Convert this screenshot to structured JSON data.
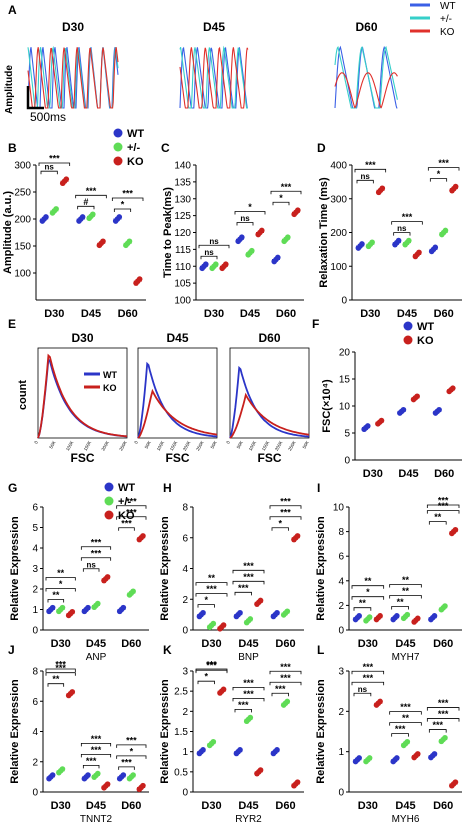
{
  "panel_letters": [
    "A",
    "B",
    "C",
    "D",
    "E",
    "F",
    "G",
    "H",
    "I",
    "J",
    "K",
    "L"
  ],
  "colors": {
    "wt": "#2b35c8",
    "het": "#5fdc56",
    "ko": "#c8201d",
    "trace_wt": "#3a5fe6",
    "trace_het": "#35cfc9",
    "trace_ko": "#e0302b"
  },
  "panel_a": {
    "titles": [
      "D30",
      "D45",
      "D60"
    ],
    "legend": [
      "WT",
      "+/-",
      "KO"
    ],
    "ylabel": "Amplitude",
    "scale_label": "500ms"
  },
  "panel_e": {
    "titles": [
      "D30",
      "D45",
      "D60"
    ],
    "legend": [
      "WT",
      "KO"
    ],
    "ylabel": "count",
    "xlabel": "FSC",
    "xticks_first": [
      "0",
      "50K",
      "100K",
      "150K",
      "200K",
      "250K"
    ],
    "xticks_other": [
      "0",
      "50K",
      "100K",
      "150K",
      "200K",
      "250K",
      "50K"
    ]
  },
  "chart_data": [
    {
      "id": "B",
      "type": "scatter",
      "ylabel": "Amplitude (a.u.)",
      "categories": [
        "D30",
        "D45",
        "D60"
      ],
      "ylim": [
        50,
        300
      ],
      "yticks": [
        100,
        150,
        200,
        250,
        300
      ],
      "legend": [
        "WT",
        "+/-",
        "KO"
      ],
      "series": [
        {
          "name": "WT",
          "values": [
            200,
            200,
            200
          ]
        },
        {
          "name": "+/-",
          "values": [
            215,
            205,
            155
          ]
        },
        {
          "name": "KO",
          "values": [
            270,
            155,
            85
          ]
        }
      ],
      "annotations": [
        [
          "ns",
          "***"
        ],
        [
          "#",
          "***"
        ],
        [
          "*",
          "***"
        ]
      ]
    },
    {
      "id": "C",
      "type": "scatter",
      "ylabel": "Time to Peak(ms)",
      "categories": [
        "D30",
        "D45",
        "D60"
      ],
      "ylim": [
        100,
        140
      ],
      "yticks": [
        100,
        105,
        110,
        115,
        120,
        125,
        130,
        135,
        140
      ],
      "series": [
        {
          "name": "WT",
          "values": [
            110,
            118,
            112
          ]
        },
        {
          "name": "+/-",
          "values": [
            110,
            114,
            118
          ]
        },
        {
          "name": "KO",
          "values": [
            110,
            120,
            126
          ]
        }
      ],
      "annotations": [
        [
          "ns",
          "ns"
        ],
        [
          "ns",
          "*"
        ],
        [
          "*",
          "***"
        ]
      ]
    },
    {
      "id": "D",
      "type": "scatter",
      "ylabel": "Relaxation Time (ms)",
      "categories": [
        "D30",
        "D45",
        "D60"
      ],
      "ylim": [
        0,
        400
      ],
      "yticks": [
        0,
        100,
        200,
        300,
        400
      ],
      "series": [
        {
          "name": "WT",
          "values": [
            160,
            170,
            150
          ]
        },
        {
          "name": "+/-",
          "values": [
            165,
            170,
            200
          ]
        },
        {
          "name": "KO",
          "values": [
            325,
            135,
            330
          ]
        }
      ],
      "annotations": [
        [
          "ns",
          "***"
        ],
        [
          "ns",
          "***"
        ],
        [
          "*",
          "***"
        ]
      ]
    },
    {
      "id": "F",
      "type": "scatter",
      "ylabel": "FSC(×10⁴)",
      "categories": [
        "D30",
        "D45",
        "D60"
      ],
      "ylim": [
        0,
        20
      ],
      "yticks": [
        0,
        5,
        10,
        15,
        20
      ],
      "legend": [
        "WT",
        "KO"
      ],
      "series": [
        {
          "name": "WT",
          "values": [
            6,
            9,
            9
          ]
        },
        {
          "name": "KO",
          "values": [
            7,
            11.5,
            13
          ]
        }
      ]
    },
    {
      "id": "G",
      "type": "scatter",
      "ylabel": "Relative Expression",
      "xlabel": "ANP",
      "categories": [
        "D30",
        "D45",
        "D60"
      ],
      "ylim": [
        0,
        6
      ],
      "yticks": [
        0,
        1,
        2,
        3,
        4,
        5,
        6
      ],
      "legend": [
        "WT",
        "+/-",
        "KO"
      ],
      "series": [
        {
          "name": "WT",
          "values": [
            1,
            1,
            1
          ]
        },
        {
          "name": "+/-",
          "values": [
            1,
            1.2,
            1.8
          ]
        },
        {
          "name": "KO",
          "values": [
            0.8,
            2.5,
            4.5
          ]
        }
      ],
      "annotations": [
        [
          "**",
          "*",
          "**"
        ],
        [
          "ns",
          "***",
          "***"
        ],
        [
          "***",
          "***",
          "***"
        ]
      ]
    },
    {
      "id": "H",
      "type": "scatter",
      "ylabel": "Relative Expression",
      "xlabel": "BNP",
      "categories": [
        "D30",
        "D45",
        "D60"
      ],
      "ylim": [
        0,
        8
      ],
      "yticks": [
        0,
        2,
        4,
        6,
        8
      ],
      "series": [
        {
          "name": "WT",
          "values": [
            1,
            1,
            1
          ]
        },
        {
          "name": "+/-",
          "values": [
            0.3,
            0.6,
            1.1
          ]
        },
        {
          "name": "KO",
          "values": [
            0.2,
            1.8,
            6
          ]
        }
      ],
      "annotations": [
        [
          "*",
          "***",
          "**"
        ],
        [
          "***",
          "***",
          "***"
        ],
        [
          "*",
          "***",
          "***"
        ]
      ]
    },
    {
      "id": "I",
      "type": "scatter",
      "ylabel": "Relative Expression",
      "xlabel": "MYH7",
      "categories": [
        "D30",
        "D45",
        "D60"
      ],
      "ylim": [
        0,
        10
      ],
      "yticks": [
        0,
        2,
        4,
        6,
        8,
        10
      ],
      "series": [
        {
          "name": "WT",
          "values": [
            1,
            1,
            1
          ]
        },
        {
          "name": "+/-",
          "values": [
            0.9,
            1.1,
            1.8
          ]
        },
        {
          "name": "KO",
          "values": [
            1,
            0.8,
            8
          ]
        }
      ],
      "annotations": [
        [
          "**",
          "*",
          "**"
        ],
        [
          "**",
          "**",
          "**"
        ],
        [
          "**",
          "***",
          "***"
        ]
      ]
    },
    {
      "id": "J",
      "type": "scatter",
      "ylabel": "Relative Expression",
      "xlabel": "TNNT2",
      "categories": [
        "D30",
        "D45",
        "D60"
      ],
      "ylim": [
        0,
        8
      ],
      "yticks": [
        0,
        2,
        4,
        6,
        8
      ],
      "series": [
        {
          "name": "WT",
          "values": [
            1,
            1,
            1
          ]
        },
        {
          "name": "+/-",
          "values": [
            1.4,
            1.1,
            1
          ]
        },
        {
          "name": "KO",
          "values": [
            6.5,
            0.4,
            0.3
          ]
        }
      ],
      "annotations": [
        [
          "**",
          "***",
          "***"
        ],
        [
          "***",
          "***",
          "***"
        ],
        [
          "***",
          "*",
          "***"
        ]
      ]
    },
    {
      "id": "K",
      "type": "scatter",
      "ylabel": "Relative Expression",
      "xlabel": "RYR2",
      "categories": [
        "D30",
        "D45",
        "D60"
      ],
      "ylim": [
        0,
        3
      ],
      "yticks": [
        0,
        0.5,
        1,
        1.5,
        2,
        2.5,
        3
      ],
      "series": [
        {
          "name": "WT",
          "values": [
            1,
            1,
            1
          ]
        },
        {
          "name": "+/-",
          "values": [
            1.2,
            1.8,
            2.2
          ]
        },
        {
          "name": "KO",
          "values": [
            2.5,
            0.5,
            0.2
          ]
        }
      ],
      "annotations": [
        [
          "*",
          "***",
          "***"
        ],
        [
          "***",
          "***",
          "***"
        ],
        [
          "***",
          "***",
          "***"
        ]
      ]
    },
    {
      "id": "L",
      "type": "scatter",
      "ylabel": "Relative Expression",
      "xlabel": "MYH6",
      "categories": [
        "D30",
        "D45",
        "D60"
      ],
      "ylim": [
        0,
        3
      ],
      "yticks": [
        0,
        1,
        2,
        3
      ],
      "series": [
        {
          "name": "WT",
          "values": [
            0.8,
            0.8,
            0.9
          ]
        },
        {
          "name": "+/-",
          "values": [
            0.8,
            1.2,
            1.3
          ]
        },
        {
          "name": "KO",
          "values": [
            2.2,
            0.9,
            0.2
          ]
        }
      ],
      "annotations": [
        [
          "ns",
          "***",
          "***"
        ],
        [
          "***",
          "**",
          "***"
        ],
        [
          "***",
          "***",
          "***"
        ]
      ]
    }
  ]
}
